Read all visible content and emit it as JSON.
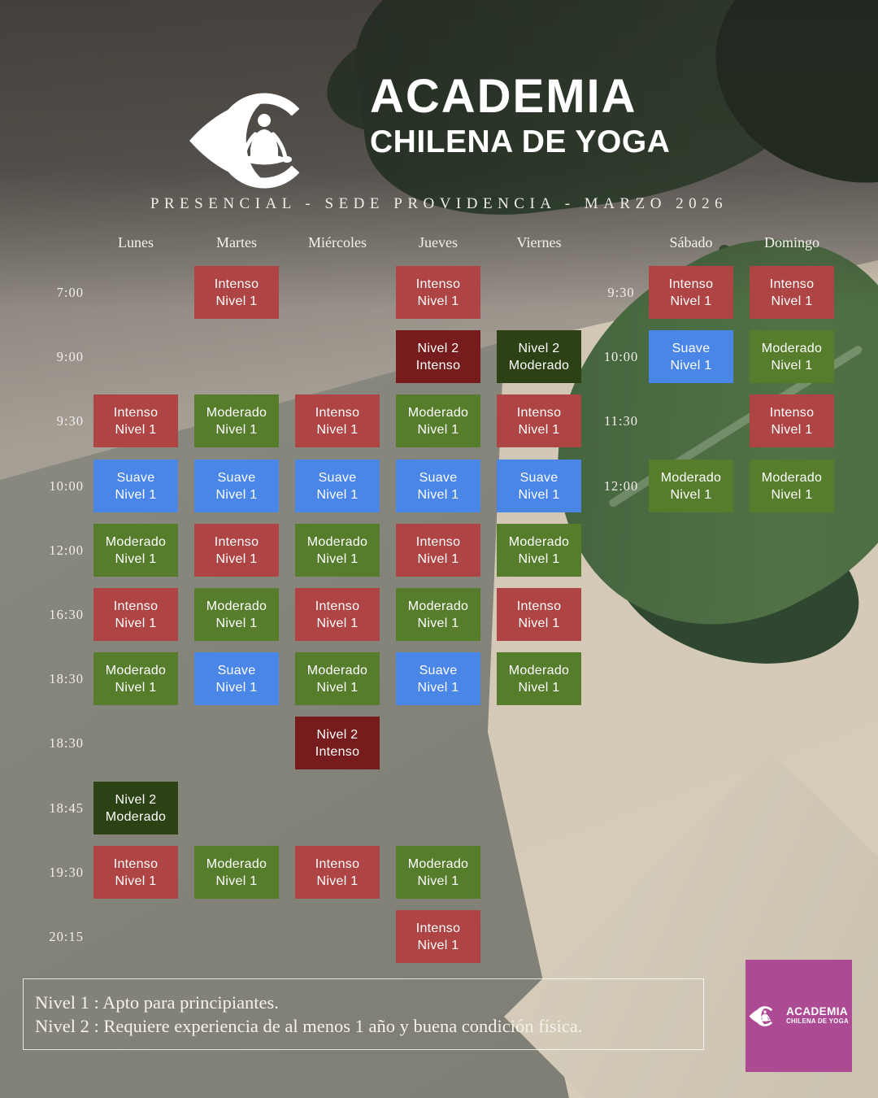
{
  "header": {
    "brand_line1": "ACADEMIA",
    "brand_line2": "CHILENA DE YOGA",
    "subtitle": "PRESENCIAL - SEDE PROVIDENCIA - MARZO 2026"
  },
  "schedule": {
    "days": [
      "Lunes",
      "Martes",
      "Miércoles",
      "Jueves",
      "Viernes",
      "Sábado",
      "Domingo"
    ],
    "rows": [
      {
        "time": "7:00",
        "weekend_time": "9:30",
        "cells": [
          {
            "day": 1,
            "line1": "Intenso",
            "line2": "Nivel 1",
            "type": "intenso"
          },
          {
            "day": 3,
            "line1": "Intenso",
            "line2": "Nivel 1",
            "type": "intenso"
          },
          {
            "day": 5,
            "line1": "Intenso",
            "line2": "Nivel 1",
            "type": "intenso"
          },
          {
            "day": 6,
            "line1": "Intenso",
            "line2": "Nivel 1",
            "type": "intenso"
          }
        ]
      },
      {
        "time": "9:00",
        "weekend_time": "10:00",
        "cells": [
          {
            "day": 3,
            "line1": "Nivel 2",
            "line2": "Intenso",
            "type": "nivel2_intenso"
          },
          {
            "day": 4,
            "line1": "Nivel 2",
            "line2": "Moderado",
            "type": "nivel2_moderado"
          },
          {
            "day": 5,
            "line1": "Suave",
            "line2": "Nivel 1",
            "type": "suave"
          },
          {
            "day": 6,
            "line1": "Moderado",
            "line2": "Nivel 1",
            "type": "moderado"
          }
        ]
      },
      {
        "time": "9:30",
        "weekend_time": "11:30",
        "cells": [
          {
            "day": 0,
            "line1": "Intenso",
            "line2": "Nivel 1",
            "type": "intenso"
          },
          {
            "day": 1,
            "line1": "Moderado",
            "line2": "Nivel 1",
            "type": "moderado"
          },
          {
            "day": 2,
            "line1": "Intenso",
            "line2": "Nivel 1",
            "type": "intenso"
          },
          {
            "day": 3,
            "line1": "Moderado",
            "line2": "Nivel 1",
            "type": "moderado"
          },
          {
            "day": 4,
            "line1": "Intenso",
            "line2": "Nivel 1",
            "type": "intenso"
          },
          {
            "day": 6,
            "line1": "Intenso",
            "line2": "Nivel 1",
            "type": "intenso"
          }
        ]
      },
      {
        "time": "10:00",
        "weekend_time": "12:00",
        "cells": [
          {
            "day": 0,
            "line1": "Suave",
            "line2": "Nivel 1",
            "type": "suave"
          },
          {
            "day": 1,
            "line1": "Suave",
            "line2": "Nivel 1",
            "type": "suave"
          },
          {
            "day": 2,
            "line1": "Suave",
            "line2": "Nivel 1",
            "type": "suave"
          },
          {
            "day": 3,
            "line1": "Suave",
            "line2": "Nivel 1",
            "type": "suave"
          },
          {
            "day": 4,
            "line1": "Suave",
            "line2": "Nivel 1",
            "type": "suave"
          },
          {
            "day": 5,
            "line1": "Moderado",
            "line2": "Nivel 1",
            "type": "moderado"
          },
          {
            "day": 6,
            "line1": "Moderado",
            "line2": "Nivel 1",
            "type": "moderado"
          }
        ]
      },
      {
        "time": "12:00",
        "weekend_time": null,
        "cells": [
          {
            "day": 0,
            "line1": "Moderado",
            "line2": "Nivel 1",
            "type": "moderado"
          },
          {
            "day": 1,
            "line1": "Intenso",
            "line2": "Nivel 1",
            "type": "intenso"
          },
          {
            "day": 2,
            "line1": "Moderado",
            "line2": "Nivel 1",
            "type": "moderado"
          },
          {
            "day": 3,
            "line1": "Intenso",
            "line2": "Nivel 1",
            "type": "intenso"
          },
          {
            "day": 4,
            "line1": "Moderado",
            "line2": "Nivel 1",
            "type": "moderado"
          }
        ]
      },
      {
        "time": "16:30",
        "weekend_time": null,
        "cells": [
          {
            "day": 0,
            "line1": "Intenso",
            "line2": "Nivel 1",
            "type": "intenso"
          },
          {
            "day": 1,
            "line1": "Moderado",
            "line2": "Nivel 1",
            "type": "moderado"
          },
          {
            "day": 2,
            "line1": "Intenso",
            "line2": "Nivel 1",
            "type": "intenso"
          },
          {
            "day": 3,
            "line1": "Moderado",
            "line2": "Nivel 1",
            "type": "moderado"
          },
          {
            "day": 4,
            "line1": "Intenso",
            "line2": "Nivel 1",
            "type": "intenso"
          }
        ]
      },
      {
        "time": "18:30",
        "weekend_time": null,
        "cells": [
          {
            "day": 0,
            "line1": "Moderado",
            "line2": "Nivel 1",
            "type": "moderado"
          },
          {
            "day": 1,
            "line1": "Suave",
            "line2": "Nivel 1",
            "type": "suave"
          },
          {
            "day": 2,
            "line1": "Moderado",
            "line2": "Nivel 1",
            "type": "moderado"
          },
          {
            "day": 3,
            "line1": "Suave",
            "line2": "Nivel 1",
            "type": "suave"
          },
          {
            "day": 4,
            "line1": "Moderado",
            "line2": "Nivel 1",
            "type": "moderado"
          }
        ]
      },
      {
        "time": "18:30",
        "weekend_time": null,
        "cells": [
          {
            "day": 2,
            "line1": "Nivel 2",
            "line2": "Intenso",
            "type": "nivel2_intenso"
          }
        ]
      },
      {
        "time": "18:45",
        "weekend_time": null,
        "cells": [
          {
            "day": 0,
            "line1": "Nivel 2",
            "line2": "Moderado",
            "type": "nivel2_moderado"
          }
        ]
      },
      {
        "time": "19:30",
        "weekend_time": null,
        "cells": [
          {
            "day": 0,
            "line1": "Intenso",
            "line2": "Nivel 1",
            "type": "intenso"
          },
          {
            "day": 1,
            "line1": "Moderado",
            "line2": "Nivel 1",
            "type": "moderado"
          },
          {
            "day": 2,
            "line1": "Intenso",
            "line2": "Nivel 1",
            "type": "intenso"
          },
          {
            "day": 3,
            "line1": "Moderado",
            "line2": "Nivel 1",
            "type": "moderado"
          }
        ]
      },
      {
        "time": "20:15",
        "weekend_time": null,
        "cells": [
          {
            "day": 3,
            "line1": "Intenso",
            "line2": "Nivel 1",
            "type": "intenso"
          }
        ]
      }
    ]
  },
  "palette": {
    "intenso": "#ae4443",
    "suave": "#4a86e8",
    "moderado": "#567d2c",
    "nivel2_intenso": "#771c1c",
    "nivel2_moderado": "#2c4214",
    "badge_background": "#ad4a94"
  },
  "legend": {
    "line1": "Nivel 1 : Apto para principiantes.",
    "line2": "Nivel 2 : Requiere experiencia de al menos 1 año y buena condición física."
  },
  "badge": {
    "line1": "ACADEMIA",
    "line2": "CHILENA DE YOGA"
  }
}
